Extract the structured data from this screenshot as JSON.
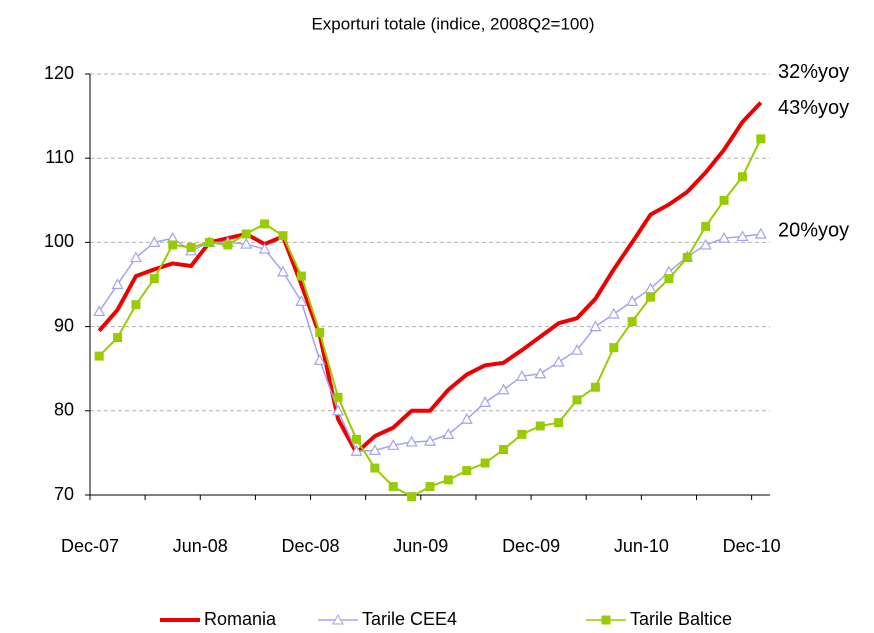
{
  "chart_data": {
    "type": "line",
    "title": "Exporturi totale (indice, 2008Q2=100)",
    "categories": [
      "Dec-07",
      null,
      null,
      null,
      null,
      null,
      "Jun-08",
      null,
      null,
      null,
      null,
      null,
      "Dec-08",
      null,
      null,
      null,
      null,
      null,
      "Jun-09",
      null,
      null,
      null,
      null,
      null,
      "Dec-09",
      null,
      null,
      null,
      null,
      null,
      "Jun-10",
      null,
      null,
      null,
      null,
      null,
      "Dec-10"
    ],
    "series": [
      {
        "name": "Romania",
        "color": "#ee0000",
        "marker": "none",
        "end_label": "32%yoy",
        "values": [
          89.5,
          92,
          96,
          96.8,
          97.5,
          97.2,
          100,
          100.5,
          101,
          99.8,
          100.7,
          95,
          89,
          79,
          75,
          77,
          78,
          80,
          80,
          82.5,
          84.3,
          85.4,
          85.7,
          87.2,
          88.8,
          90.4,
          91,
          93.3,
          96.8,
          100,
          103.3,
          104.5,
          106,
          108.3,
          111,
          114.3,
          116.6
        ]
      },
      {
        "name": "Tarile CEE4",
        "color": "#a3a3f0",
        "marker": "triangle",
        "end_label": "20%yoy",
        "values": [
          91.8,
          95,
          98.2,
          100,
          100.5,
          99,
          100,
          100,
          99.8,
          99.2,
          96.5,
          93,
          86,
          80,
          75.2,
          75.3,
          75.9,
          76.3,
          76.4,
          77.2,
          79,
          81,
          82.5,
          84.1,
          84.4,
          85.8,
          87.2,
          90,
          91.5,
          93,
          94.5,
          96.5,
          98.3,
          99.7,
          100.5,
          100.7,
          101
        ]
      },
      {
        "name": "Tarile Baltice",
        "color": "#99cc00",
        "marker": "square",
        "end_label": "43%yoy",
        "values": [
          86.5,
          88.7,
          92.6,
          95.7,
          99.7,
          99.4,
          100,
          99.7,
          101,
          102.2,
          100.8,
          96,
          89.3,
          81.6,
          76.6,
          73.2,
          71,
          69.8,
          71,
          71.8,
          72.9,
          73.8,
          75.4,
          77.2,
          78.2,
          78.6,
          81.3,
          82.8,
          87.5,
          90.6,
          93.5,
          95.7,
          98.2,
          101.9,
          105,
          107.8,
          112.3
        ]
      }
    ],
    "ylim": [
      70,
      120
    ],
    "yticks": [
      70,
      80,
      90,
      100,
      110,
      120
    ],
    "grid": true,
    "legend": "bottom"
  }
}
